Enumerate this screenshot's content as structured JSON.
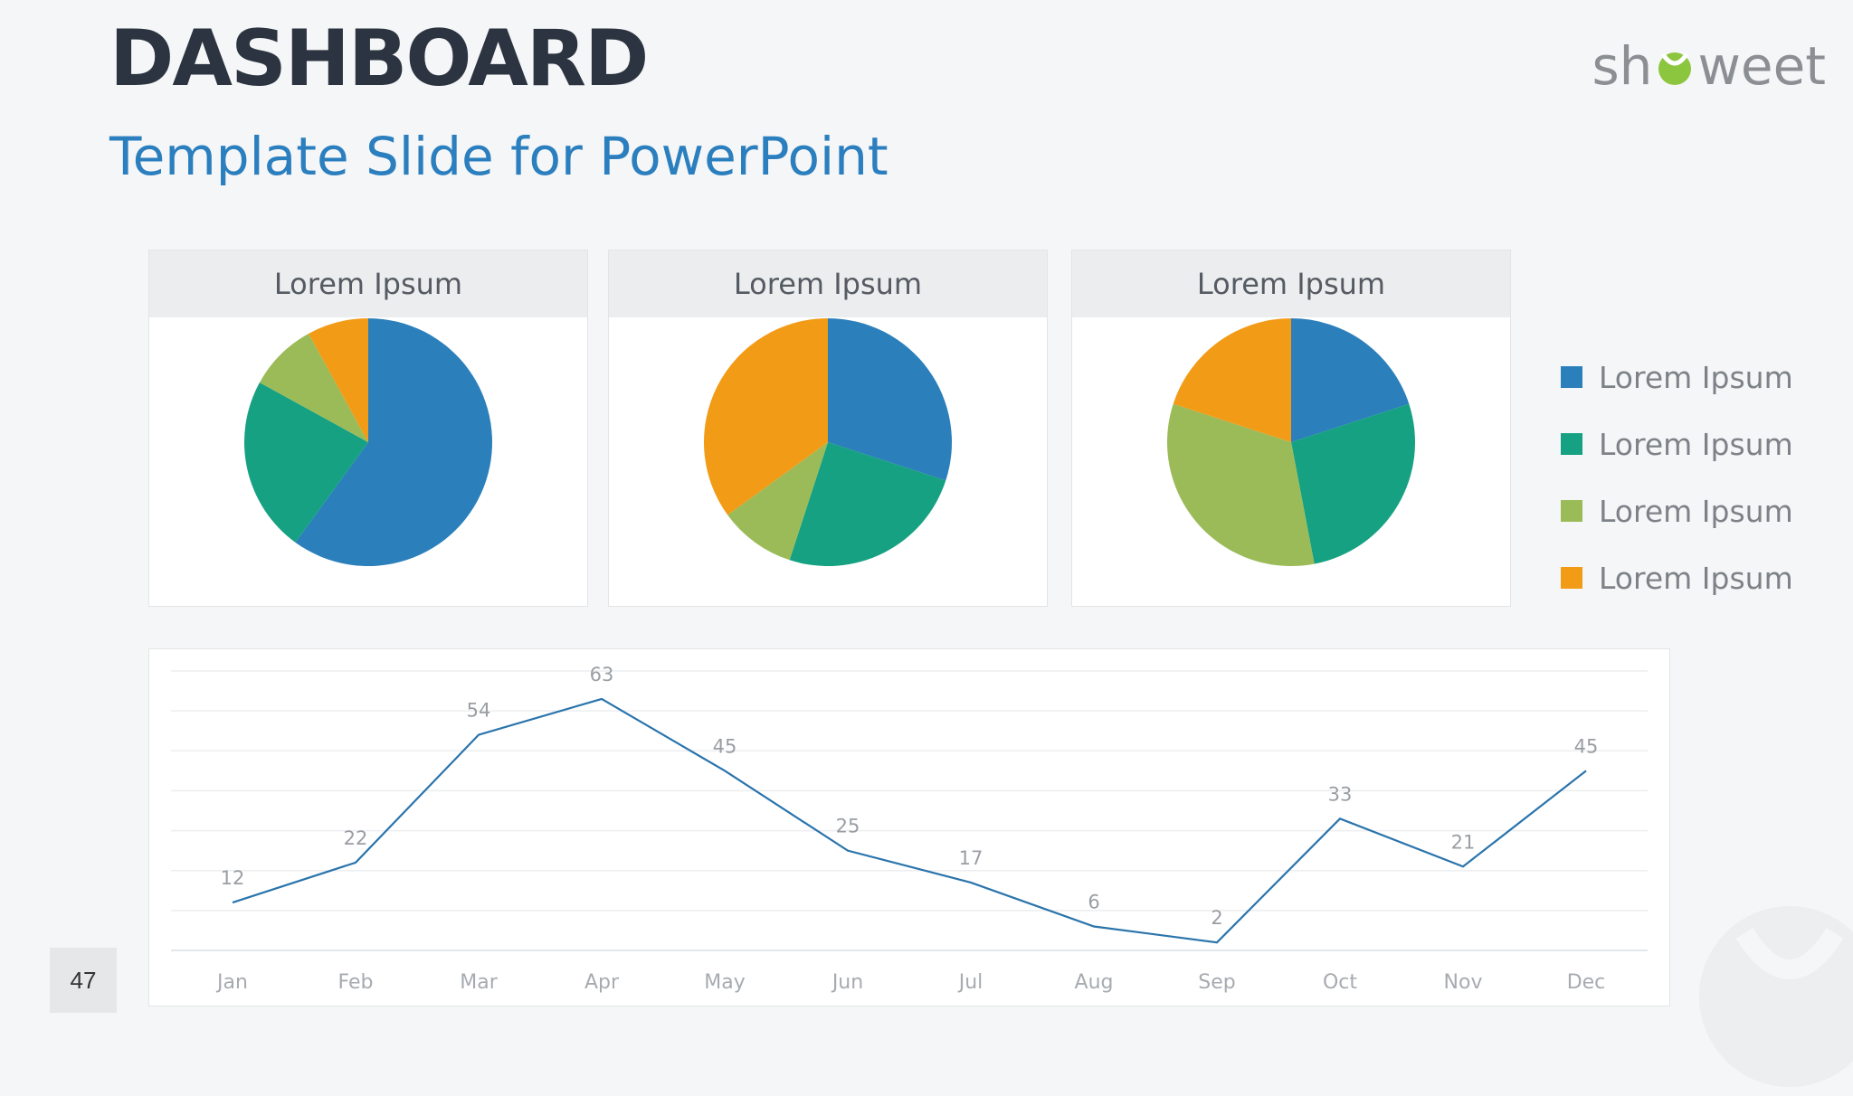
{
  "header": {
    "title": "DASHBOARD",
    "subtitle": "Template Slide for PowerPoint",
    "logo_left": "sh",
    "logo_right": "weet"
  },
  "colors": {
    "blue": "#2b7fbb",
    "teal": "#16a182",
    "green": "#9bbb59",
    "orange": "#f29b16",
    "line": "#2a74ac"
  },
  "legend": [
    {
      "label": "Lorem Ipsum",
      "color": "#2b7fbb"
    },
    {
      "label": "Lorem Ipsum",
      "color": "#16a182"
    },
    {
      "label": "Lorem Ipsum",
      "color": "#9bbb59"
    },
    {
      "label": "Lorem Ipsum",
      "color": "#f29b16"
    }
  ],
  "page_number": "47",
  "chart_data": [
    {
      "type": "pie",
      "title": "Lorem Ipsum",
      "categories": [
        "Lorem Ipsum",
        "Lorem Ipsum",
        "Lorem Ipsum",
        "Lorem Ipsum"
      ],
      "values": [
        60,
        23,
        9,
        8
      ],
      "colors": [
        "#2b7fbb",
        "#16a182",
        "#9bbb59",
        "#f29b16"
      ]
    },
    {
      "type": "pie",
      "title": "Lorem Ipsum",
      "categories": [
        "Lorem Ipsum",
        "Lorem Ipsum",
        "Lorem Ipsum",
        "Lorem Ipsum"
      ],
      "values": [
        30,
        25,
        10,
        35
      ],
      "colors": [
        "#2b7fbb",
        "#16a182",
        "#9bbb59",
        "#f29b16"
      ]
    },
    {
      "type": "pie",
      "title": "Lorem Ipsum",
      "categories": [
        "Lorem Ipsum",
        "Lorem Ipsum",
        "Lorem Ipsum",
        "Lorem Ipsum"
      ],
      "values": [
        20,
        27,
        33,
        20
      ],
      "colors": [
        "#2b7fbb",
        "#16a182",
        "#9bbb59",
        "#f29b16"
      ]
    },
    {
      "type": "line",
      "categories": [
        "Jan",
        "Feb",
        "Mar",
        "Apr",
        "May",
        "Jun",
        "Jul",
        "Aug",
        "Sep",
        "Oct",
        "Nov",
        "Dec"
      ],
      "values": [
        12,
        22,
        54,
        63,
        45,
        25,
        17,
        6,
        2,
        33,
        21,
        45
      ],
      "ylim": [
        0,
        70
      ],
      "grid": true,
      "data_labels": true,
      "color": "#2a74ac"
    }
  ]
}
